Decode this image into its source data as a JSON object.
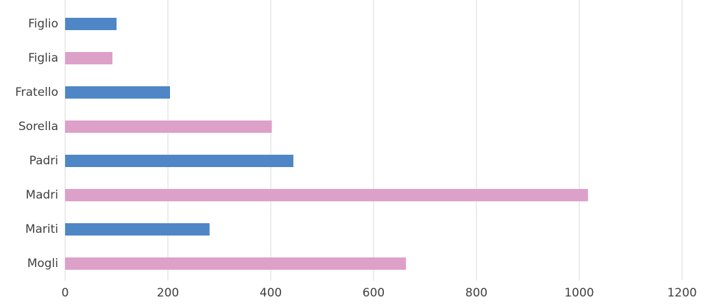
{
  "chart_data": {
    "type": "hbar",
    "categories": [
      "Figlio",
      "Figlia",
      "Fratello",
      "Sorella",
      "Padri",
      "Madri",
      "Mariti",
      "Mogli"
    ],
    "values": [
      100,
      92,
      204,
      402,
      444,
      1017,
      281,
      663
    ],
    "colors": [
      "#4f86c6",
      "#dda0c8",
      "#4f86c6",
      "#dda0c8",
      "#4f86c6",
      "#dda0c8",
      "#4f86c6",
      "#dda0c8"
    ],
    "xlim": [
      0,
      1200
    ],
    "xticks": [
      0,
      200,
      400,
      600,
      800,
      1000,
      1200
    ],
    "grid": true
  }
}
